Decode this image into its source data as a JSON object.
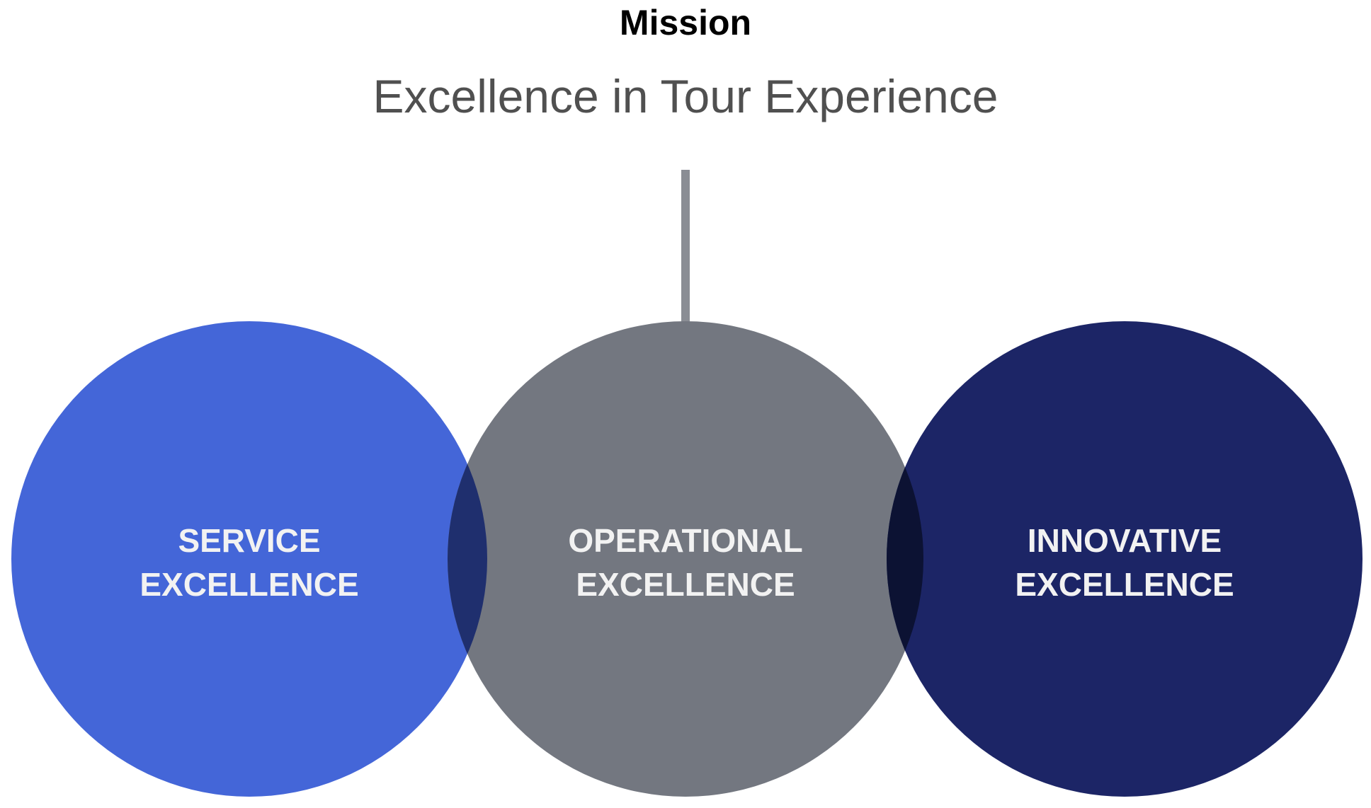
{
  "header": {
    "label": "Mission",
    "statement": "Excellence in Tour Experience"
  },
  "pillars": [
    {
      "line1": "SERVICE",
      "line2": "EXCELLENCE",
      "color": "#4466d8"
    },
    {
      "line1": "OPERATIONAL",
      "line2": "EXCELLENCE",
      "color": "#737780"
    },
    {
      "line1": "INNOVATIVE",
      "line2": "EXCELLENCE",
      "color": "#1c2566"
    }
  ],
  "overlap_colors": {
    "left": "#1f2f6e",
    "right": "#0c1233"
  },
  "connector_color": "#8a8d94"
}
